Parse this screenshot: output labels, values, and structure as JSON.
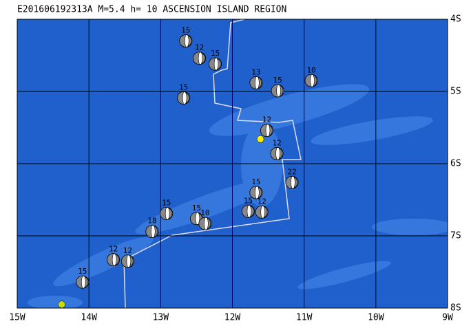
{
  "map": {
    "title": "E201606192313A M=5.4 h= 10 ASCENSION ISLAND REGION",
    "xlim": [
      15,
      9
    ],
    "ylim": [
      4,
      8
    ],
    "xticks": [
      {
        "value": 15,
        "label": "15W"
      },
      {
        "value": 14,
        "label": "14W"
      },
      {
        "value": 13,
        "label": "13W"
      },
      {
        "value": 12,
        "label": "12W"
      },
      {
        "value": 11,
        "label": "11W"
      },
      {
        "value": 10,
        "label": "10W"
      },
      {
        "value": 9,
        "label": "9W"
      }
    ],
    "yticks": [
      {
        "value": 4,
        "label": "4S"
      },
      {
        "value": 5,
        "label": "5S"
      },
      {
        "value": 6,
        "label": "6S"
      },
      {
        "value": 7,
        "label": "7S"
      },
      {
        "value": 8,
        "label": "8S"
      }
    ],
    "grid": true,
    "events": [
      {
        "lon": 12.65,
        "lat": 4.3,
        "depth": 15
      },
      {
        "lon": 12.46,
        "lat": 4.54,
        "depth": 12
      },
      {
        "lon": 12.24,
        "lat": 4.62,
        "depth": 15
      },
      {
        "lon": 12.68,
        "lat": 5.09,
        "depth": 15
      },
      {
        "lon": 11.67,
        "lat": 4.88,
        "depth": 13
      },
      {
        "lon": 11.37,
        "lat": 4.99,
        "depth": 15
      },
      {
        "lon": 10.9,
        "lat": 4.85,
        "depth": 10
      },
      {
        "lon": 11.52,
        "lat": 5.54,
        "depth": 12
      },
      {
        "lon": 11.38,
        "lat": 5.86,
        "depth": 12
      },
      {
        "lon": 11.17,
        "lat": 6.26,
        "depth": 22
      },
      {
        "lon": 11.67,
        "lat": 6.4,
        "depth": 15
      },
      {
        "lon": 11.78,
        "lat": 6.66,
        "depth": 15
      },
      {
        "lon": 11.59,
        "lat": 6.67,
        "depth": 12
      },
      {
        "lon": 12.92,
        "lat": 6.69,
        "depth": 15
      },
      {
        "lon": 13.12,
        "lat": 6.94,
        "depth": 18
      },
      {
        "lon": 12.5,
        "lat": 6.76,
        "depth": 15
      },
      {
        "lon": 12.38,
        "lat": 6.83,
        "depth": 10
      },
      {
        "lon": 13.66,
        "lat": 7.33,
        "depth": 12
      },
      {
        "lon": 13.46,
        "lat": 7.35,
        "depth": 12
      },
      {
        "lon": 14.09,
        "lat": 7.64,
        "depth": 15
      }
    ],
    "highlights": [
      {
        "lon": 11.61,
        "lat": 5.66,
        "color": "#ffee00"
      },
      {
        "lon": 14.38,
        "lat": 7.95,
        "color": "#c8e000"
      }
    ]
  }
}
